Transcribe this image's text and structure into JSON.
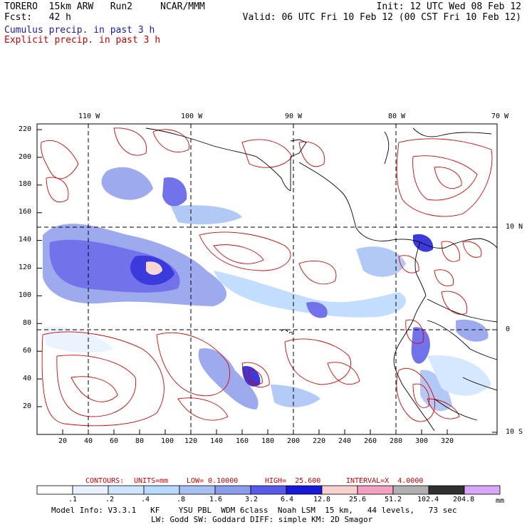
{
  "header": {
    "model_line": "TORERO  15km ARW   Run2     NCAR/MMM",
    "init_line": "Init: 12 UTC Wed 08 Feb 12",
    "fcst_line": "Fcst:   42 h",
    "valid_line": "Valid: 06 UTC Fri 10 Feb 12 (00 CST Fri 10 Feb 12)"
  },
  "legend_labels": {
    "cumulus": "Cumulus precip. in past 3 h",
    "explicit": "Explicit precip. in past 3 h"
  },
  "colors": {
    "cumulus": "#1a1aa8",
    "explicit": "#cc0000",
    "contour": "#dd0000",
    "grid": "#000000"
  },
  "map": {
    "top_lon_labels": [
      "110 W",
      "100 W",
      "90 W",
      "80 W",
      "70 W"
    ],
    "right_lat_labels": [
      "10 N",
      "0",
      "10 S"
    ],
    "y_ticks": [
      "220",
      "200",
      "180",
      "160",
      "140",
      "120",
      "100",
      "80",
      "60",
      "40",
      "20"
    ],
    "x_ticks": [
      "20",
      "40",
      "60",
      "80",
      "100",
      "120",
      "140",
      "160",
      "180",
      "200",
      "220",
      "240",
      "260",
      "280",
      "300",
      "320"
    ]
  },
  "contour_info": {
    "label": "CONTOURS:",
    "units": "UNITS=mm",
    "low": "LOW= 0.10000",
    "high": "HIGH=  25.600",
    "interval": "INTERVAL=X  4.0000"
  },
  "colorbar": {
    "colors": [
      "#ffffff",
      "#e8f2ff",
      "#cfe4ff",
      "#b8d8ff",
      "#a6c0f4",
      "#8c9cec",
      "#5a5ae8",
      "#1818d8",
      "#f8d0d0",
      "#f4a0c0",
      "#b0b0b0",
      "#303030",
      "#d8a8f8"
    ],
    "labels": [
      ".1",
      ".2",
      ".4",
      ".8",
      "1.6",
      "3.2",
      "6.4",
      "12.8",
      "25.6",
      "51.2",
      "102.4",
      "204.8"
    ],
    "units": "mm"
  },
  "footer": {
    "line1": "Model Info: V3.3.1   KF    YSU PBL  WDM 6class  Noah LSM  15 km,   44 levels,   73 sec",
    "line2": "LW: Godd SW: Goddard DIFF: simple KM: 2D Smagor"
  }
}
